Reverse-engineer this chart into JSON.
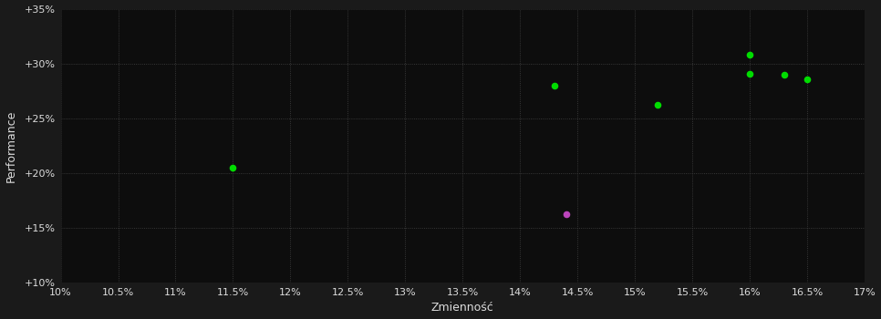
{
  "background_color": "#1a1a1a",
  "plot_bg_color": "#0d0d0d",
  "grid_color": "#444444",
  "text_color": "#dddddd",
  "xlabel": "Zmienność",
  "ylabel": "Performance",
  "xlim": [
    0.1,
    0.17
  ],
  "ylim": [
    0.1,
    0.35
  ],
  "green_points": [
    [
      0.115,
      0.205
    ],
    [
      0.143,
      0.28
    ],
    [
      0.152,
      0.262
    ],
    [
      0.16,
      0.291
    ],
    [
      0.16,
      0.308
    ],
    [
      0.163,
      0.29
    ],
    [
      0.165,
      0.286
    ]
  ],
  "magenta_points": [
    [
      0.144,
      0.163
    ]
  ],
  "green_color": "#00dd00",
  "magenta_color": "#bb44bb",
  "dot_size": 30
}
